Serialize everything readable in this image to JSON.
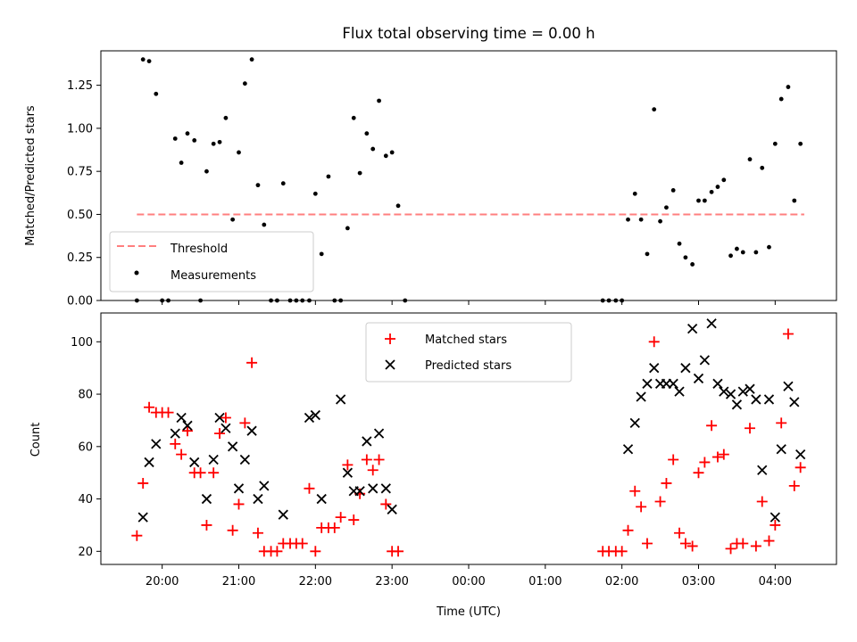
{
  "chart_data": [
    {
      "type": "scatter",
      "title": "Flux total observing time = 0.00 h",
      "ylabel": "Matched/Predicted stars",
      "xlabel": "",
      "x_unit": "hours (UTC, continuing past midnight)",
      "xlim": [
        19.2,
        28.8
      ],
      "ylim": [
        0,
        1.45
      ],
      "yticks": [
        "0.00",
        "0.25",
        "0.50",
        "0.75",
        "1.00",
        "1.25"
      ],
      "legend_position": "lower-left",
      "threshold": {
        "name": "Threshold",
        "value": 0.5,
        "x_range": [
          19.67,
          28.38
        ],
        "color": "#ff7f7f"
      },
      "series": [
        {
          "name": "Measurements",
          "color": "#000000",
          "points": [
            [
              19.67,
              0.0
            ],
            [
              19.75,
              1.4
            ],
            [
              19.83,
              1.39
            ],
            [
              19.92,
              1.2
            ],
            [
              20.0,
              0.0
            ],
            [
              20.08,
              0.0
            ],
            [
              20.17,
              0.94
            ],
            [
              20.25,
              0.8
            ],
            [
              20.33,
              0.97
            ],
            [
              20.42,
              0.93
            ],
            [
              20.5,
              0.0
            ],
            [
              20.58,
              0.75
            ],
            [
              20.67,
              0.91
            ],
            [
              20.75,
              0.92
            ],
            [
              20.83,
              1.06
            ],
            [
              20.92,
              0.47
            ],
            [
              21.0,
              0.86
            ],
            [
              21.08,
              1.26
            ],
            [
              21.17,
              1.4
            ],
            [
              21.25,
              0.67
            ],
            [
              21.33,
              0.44
            ],
            [
              21.42,
              0.0
            ],
            [
              21.5,
              0.0
            ],
            [
              21.58,
              0.68
            ],
            [
              21.67,
              0.0
            ],
            [
              21.75,
              0.0
            ],
            [
              21.83,
              0.0
            ],
            [
              21.92,
              0.0
            ],
            [
              22.0,
              0.62
            ],
            [
              22.08,
              0.27
            ],
            [
              22.17,
              0.72
            ],
            [
              22.25,
              0.0
            ],
            [
              22.33,
              0.0
            ],
            [
              22.42,
              0.42
            ],
            [
              22.5,
              1.06
            ],
            [
              22.58,
              0.74
            ],
            [
              22.67,
              0.97
            ],
            [
              22.75,
              0.88
            ],
            [
              22.83,
              1.16
            ],
            [
              22.92,
              0.84
            ],
            [
              23.0,
              0.86
            ],
            [
              23.08,
              0.55
            ],
            [
              23.17,
              0.0
            ],
            [
              25.75,
              0.0
            ],
            [
              25.83,
              0.0
            ],
            [
              25.92,
              0.0
            ],
            [
              26.0,
              0.0
            ],
            [
              26.08,
              0.47
            ],
            [
              26.17,
              0.62
            ],
            [
              26.25,
              0.47
            ],
            [
              26.33,
              0.27
            ],
            [
              26.42,
              1.11
            ],
            [
              26.5,
              0.46
            ],
            [
              26.58,
              0.54
            ],
            [
              26.67,
              0.64
            ],
            [
              26.75,
              0.33
            ],
            [
              26.83,
              0.25
            ],
            [
              26.92,
              0.21
            ],
            [
              27.0,
              0.58
            ],
            [
              27.08,
              0.58
            ],
            [
              27.17,
              0.63
            ],
            [
              27.25,
              0.66
            ],
            [
              27.33,
              0.7
            ],
            [
              27.42,
              0.26
            ],
            [
              27.5,
              0.3
            ],
            [
              27.58,
              0.28
            ],
            [
              27.67,
              0.82
            ],
            [
              27.75,
              0.28
            ],
            [
              27.83,
              0.77
            ],
            [
              27.92,
              0.31
            ],
            [
              28.0,
              0.91
            ],
            [
              28.08,
              1.17
            ],
            [
              28.17,
              1.24
            ],
            [
              28.25,
              0.58
            ],
            [
              28.33,
              0.91
            ]
          ]
        }
      ]
    },
    {
      "type": "scatter",
      "title": "",
      "ylabel": "Count",
      "xlabel": "Time (UTC)",
      "x_unit": "hours (UTC, continuing past midnight)",
      "xlim": [
        19.2,
        28.8
      ],
      "ylim": [
        15,
        111
      ],
      "yticks": [
        "20",
        "40",
        "60",
        "80",
        "100"
      ],
      "xticks": [
        {
          "x": 20,
          "label": "20:00"
        },
        {
          "x": 21,
          "label": "21:00"
        },
        {
          "x": 22,
          "label": "22:00"
        },
        {
          "x": 23,
          "label": "23:00"
        },
        {
          "x": 24,
          "label": "00:00"
        },
        {
          "x": 25,
          "label": "01:00"
        },
        {
          "x": 26,
          "label": "02:00"
        },
        {
          "x": 27,
          "label": "03:00"
        },
        {
          "x": 28,
          "label": "04:00"
        }
      ],
      "legend_position": "top-center",
      "series": [
        {
          "name": "Matched stars",
          "color": "#ff0000",
          "marker": "+",
          "points": [
            [
              19.67,
              26
            ],
            [
              19.75,
              46
            ],
            [
              19.83,
              75
            ],
            [
              19.92,
              73
            ],
            [
              20.0,
              73
            ],
            [
              20.08,
              73
            ],
            [
              20.17,
              61
            ],
            [
              20.25,
              57
            ],
            [
              20.33,
              66
            ],
            [
              20.42,
              50
            ],
            [
              20.5,
              50
            ],
            [
              20.58,
              30
            ],
            [
              20.67,
              50
            ],
            [
              20.75,
              65
            ],
            [
              20.83,
              71
            ],
            [
              20.92,
              28
            ],
            [
              21.0,
              38
            ],
            [
              21.08,
              69
            ],
            [
              21.17,
              92
            ],
            [
              21.25,
              27
            ],
            [
              21.33,
              20
            ],
            [
              21.42,
              20
            ],
            [
              21.5,
              20
            ],
            [
              21.58,
              23
            ],
            [
              21.67,
              23
            ],
            [
              21.75,
              23
            ],
            [
              21.83,
              23
            ],
            [
              21.92,
              44
            ],
            [
              22.0,
              20
            ],
            [
              22.08,
              29
            ],
            [
              22.17,
              29
            ],
            [
              22.25,
              29
            ],
            [
              22.33,
              33
            ],
            [
              22.42,
              53
            ],
            [
              22.5,
              32
            ],
            [
              22.58,
              42
            ],
            [
              22.67,
              55
            ],
            [
              22.75,
              51
            ],
            [
              22.83,
              55
            ],
            [
              22.92,
              38
            ],
            [
              23.0,
              20
            ],
            [
              23.08,
              20
            ],
            [
              25.75,
              20
            ],
            [
              25.83,
              20
            ],
            [
              25.92,
              20
            ],
            [
              26.0,
              20
            ],
            [
              26.08,
              28
            ],
            [
              26.17,
              43
            ],
            [
              26.25,
              37
            ],
            [
              26.33,
              23
            ],
            [
              26.42,
              100
            ],
            [
              26.5,
              39
            ],
            [
              26.58,
              46
            ],
            [
              26.67,
              55
            ],
            [
              26.75,
              27
            ],
            [
              26.83,
              23
            ],
            [
              26.92,
              22
            ],
            [
              27.0,
              50
            ],
            [
              27.08,
              54
            ],
            [
              27.17,
              68
            ],
            [
              27.25,
              56
            ],
            [
              27.33,
              57
            ],
            [
              27.42,
              21
            ],
            [
              27.5,
              23
            ],
            [
              27.58,
              23
            ],
            [
              27.67,
              67
            ],
            [
              27.75,
              22
            ],
            [
              27.83,
              39
            ],
            [
              27.92,
              24
            ],
            [
              28.0,
              30
            ],
            [
              28.08,
              69
            ],
            [
              28.17,
              103
            ],
            [
              28.25,
              45
            ],
            [
              28.33,
              52
            ]
          ]
        },
        {
          "name": "Predicted stars",
          "color": "#000000",
          "marker": "x",
          "points": [
            [
              19.75,
              33
            ],
            [
              19.83,
              54
            ],
            [
              19.92,
              61
            ],
            [
              20.17,
              65
            ],
            [
              20.25,
              71
            ],
            [
              20.33,
              68
            ],
            [
              20.42,
              54
            ],
            [
              20.58,
              40
            ],
            [
              20.67,
              55
            ],
            [
              20.75,
              71
            ],
            [
              20.83,
              67
            ],
            [
              20.92,
              60
            ],
            [
              21.0,
              44
            ],
            [
              21.08,
              55
            ],
            [
              21.17,
              66
            ],
            [
              21.25,
              40
            ],
            [
              21.33,
              45
            ],
            [
              21.58,
              34
            ],
            [
              21.92,
              71
            ],
            [
              22.0,
              72
            ],
            [
              22.08,
              40
            ],
            [
              22.33,
              78
            ],
            [
              22.42,
              50
            ],
            [
              22.5,
              43
            ],
            [
              22.58,
              43
            ],
            [
              22.67,
              62
            ],
            [
              22.75,
              44
            ],
            [
              22.83,
              65
            ],
            [
              22.92,
              44
            ],
            [
              23.0,
              36
            ],
            [
              26.08,
              59
            ],
            [
              26.17,
              69
            ],
            [
              26.25,
              79
            ],
            [
              26.33,
              84
            ],
            [
              26.42,
              90
            ],
            [
              26.5,
              84
            ],
            [
              26.58,
              84
            ],
            [
              26.67,
              84
            ],
            [
              26.75,
              81
            ],
            [
              26.83,
              90
            ],
            [
              26.92,
              105
            ],
            [
              27.0,
              86
            ],
            [
              27.08,
              93
            ],
            [
              27.17,
              107
            ],
            [
              27.25,
              84
            ],
            [
              27.33,
              81
            ],
            [
              27.42,
              80
            ],
            [
              27.5,
              76
            ],
            [
              27.58,
              81
            ],
            [
              27.67,
              82
            ],
            [
              27.75,
              78
            ],
            [
              27.83,
              51
            ],
            [
              27.92,
              78
            ],
            [
              28.0,
              33
            ],
            [
              28.08,
              59
            ],
            [
              28.17,
              83
            ],
            [
              28.25,
              77
            ],
            [
              28.33,
              57
            ]
          ]
        }
      ]
    }
  ]
}
